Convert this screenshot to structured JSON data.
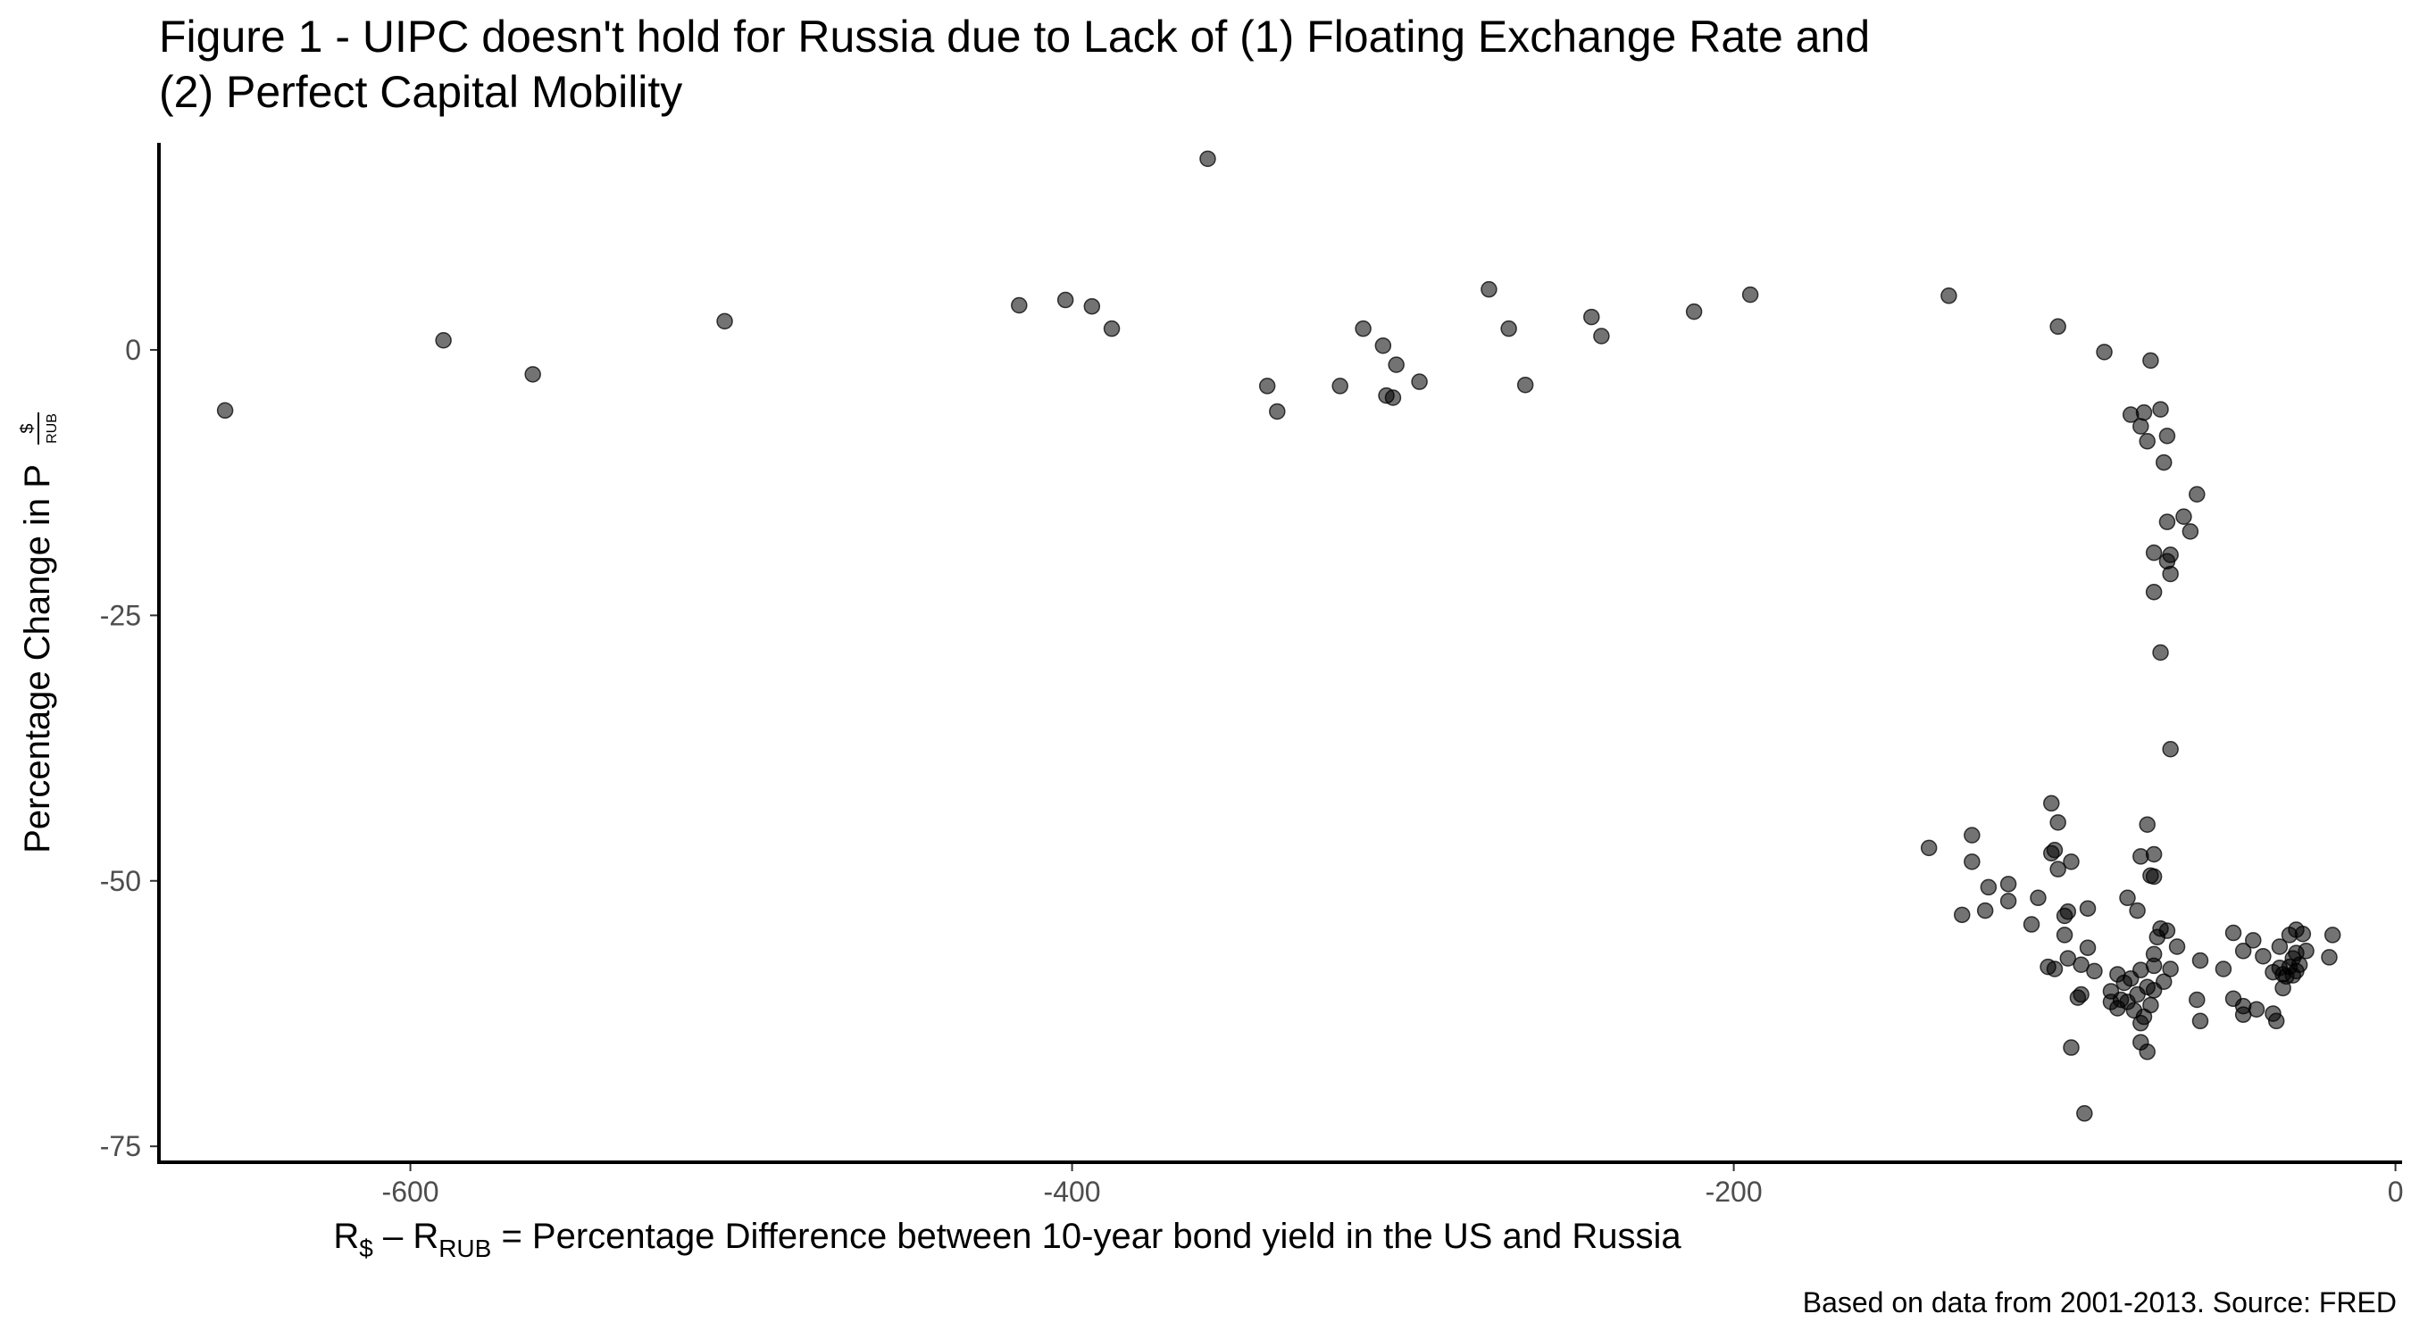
{
  "chart_data": {
    "type": "scatter",
    "title_lines": [
      "Figure 1 - UIPC doesn't hold for Russia due to Lack of (1) Floating Exchange Rate and",
      "(2) Perfect Capital Mobility"
    ],
    "xlabel": {
      "r": "R",
      "sub_usd": "$",
      "dash": " – ",
      "r2": "R",
      "sub_rub": "RUB",
      "rest": " = Percentage Difference between 10-year bond yield in the US and Russia"
    },
    "ylabel": {
      "text": "Percentage Change in P",
      "frac_num": "$",
      "frac_den": "RUB"
    },
    "caption": "Based on data from 2001-2013. Source: FRED",
    "xlim": [
      -676,
      2
    ],
    "ylim": [
      -76.5,
      19.5
    ],
    "x_ticks": [
      {
        "value": -600,
        "label": "-600"
      },
      {
        "value": -400,
        "label": "-400"
      },
      {
        "value": -200,
        "label": "-200"
      },
      {
        "value": 0,
        "label": "0"
      }
    ],
    "y_ticks": [
      {
        "value": 0,
        "label": "0"
      },
      {
        "value": -25,
        "label": "-25"
      },
      {
        "value": -50,
        "label": "-50"
      },
      {
        "value": -75,
        "label": "-75"
      }
    ],
    "grid": false,
    "point_color": "#000000",
    "points": [
      {
        "x": -656,
        "y": -5.7
      },
      {
        "x": -590,
        "y": 0.9
      },
      {
        "x": -563,
        "y": -2.3
      },
      {
        "x": -505,
        "y": 2.7
      },
      {
        "x": -416,
        "y": 4.2
      },
      {
        "x": -402,
        "y": 4.7
      },
      {
        "x": -394,
        "y": 4.1
      },
      {
        "x": -388,
        "y": 2.0
      },
      {
        "x": -359,
        "y": 18.0
      },
      {
        "x": -341,
        "y": -3.4
      },
      {
        "x": -338,
        "y": -5.8
      },
      {
        "x": -319,
        "y": -3.4
      },
      {
        "x": -312,
        "y": 2.0
      },
      {
        "x": -306,
        "y": 0.4
      },
      {
        "x": -305,
        "y": -4.3
      },
      {
        "x": -303,
        "y": -4.5
      },
      {
        "x": -302,
        "y": -1.4
      },
      {
        "x": -295,
        "y": -3.0
      },
      {
        "x": -274,
        "y": 5.7
      },
      {
        "x": -268,
        "y": 2.0
      },
      {
        "x": -263,
        "y": -3.3
      },
      {
        "x": -243,
        "y": 3.1
      },
      {
        "x": -240,
        "y": 1.3
      },
      {
        "x": -212,
        "y": 3.6
      },
      {
        "x": -195,
        "y": 5.2
      },
      {
        "x": -135,
        "y": 5.1
      },
      {
        "x": -102,
        "y": 2.2
      },
      {
        "x": -88,
        "y": -0.2
      },
      {
        "x": -74,
        "y": -1.0
      },
      {
        "x": -80,
        "y": -6.1
      },
      {
        "x": -76,
        "y": -5.9
      },
      {
        "x": -71,
        "y": -5.6
      },
      {
        "x": -77,
        "y": -7.2
      },
      {
        "x": -75,
        "y": -8.6
      },
      {
        "x": -69,
        "y": -8.1
      },
      {
        "x": -70,
        "y": -10.6
      },
      {
        "x": -60,
        "y": -13.6
      },
      {
        "x": -64,
        "y": -15.7
      },
      {
        "x": -69,
        "y": -16.2
      },
      {
        "x": -62,
        "y": -17.1
      },
      {
        "x": -73,
        "y": -19.1
      },
      {
        "x": -68,
        "y": -19.3
      },
      {
        "x": -69,
        "y": -19.9
      },
      {
        "x": -68,
        "y": -21.1
      },
      {
        "x": -73,
        "y": -22.8
      },
      {
        "x": -71,
        "y": -28.5
      },
      {
        "x": -68,
        "y": -37.6
      },
      {
        "x": -141,
        "y": -46.9
      },
      {
        "x": -128,
        "y": -45.7
      },
      {
        "x": -128,
        "y": -48.2
      },
      {
        "x": -123,
        "y": -50.6
      },
      {
        "x": -117,
        "y": -50.3
      },
      {
        "x": -131,
        "y": -53.2
      },
      {
        "x": -124,
        "y": -52.8
      },
      {
        "x": -117,
        "y": -51.9
      },
      {
        "x": -104,
        "y": -42.7
      },
      {
        "x": -102,
        "y": -44.5
      },
      {
        "x": -104,
        "y": -47.4
      },
      {
        "x": -102,
        "y": -48.9
      },
      {
        "x": -98,
        "y": -48.2
      },
      {
        "x": -103,
        "y": -47.1
      },
      {
        "x": -75,
        "y": -44.7
      },
      {
        "x": -77,
        "y": -47.7
      },
      {
        "x": -73,
        "y": -47.5
      },
      {
        "x": -74,
        "y": -49.5
      },
      {
        "x": -73,
        "y": -49.6
      },
      {
        "x": -81,
        "y": -51.6
      },
      {
        "x": -78,
        "y": -52.8
      },
      {
        "x": -108,
        "y": -51.6
      },
      {
        "x": -110,
        "y": -54.1
      },
      {
        "x": -99,
        "y": -52.9
      },
      {
        "x": -100,
        "y": -53.3
      },
      {
        "x": -93,
        "y": -52.6
      },
      {
        "x": -100,
        "y": -55.1
      },
      {
        "x": -105,
        "y": -58.1
      },
      {
        "x": -103,
        "y": -58.3
      },
      {
        "x": -99,
        "y": -57.3
      },
      {
        "x": -95,
        "y": -57.9
      },
      {
        "x": -93,
        "y": -56.3
      },
      {
        "x": -91,
        "y": -58.5
      },
      {
        "x": -86,
        "y": -60.4
      },
      {
        "x": -84,
        "y": -58.8
      },
      {
        "x": -83,
        "y": -61.2
      },
      {
        "x": -82,
        "y": -59.6
      },
      {
        "x": -80,
        "y": -59.2
      },
      {
        "x": -78,
        "y": -60.7
      },
      {
        "x": -77,
        "y": -58.4
      },
      {
        "x": -75,
        "y": -60.0
      },
      {
        "x": -74,
        "y": -61.7
      },
      {
        "x": -76,
        "y": -62.8
      },
      {
        "x": -79,
        "y": -62.2
      },
      {
        "x": -81,
        "y": -61.4
      },
      {
        "x": -84,
        "y": -62.0
      },
      {
        "x": -86,
        "y": -61.4
      },
      {
        "x": -96,
        "y": -61.0
      },
      {
        "x": -95,
        "y": -60.7
      },
      {
        "x": -98,
        "y": -65.7
      },
      {
        "x": -77,
        "y": -65.2
      },
      {
        "x": -75,
        "y": -66.1
      },
      {
        "x": -77,
        "y": -63.4
      },
      {
        "x": -94,
        "y": -71.9
      },
      {
        "x": -73,
        "y": -56.9
      },
      {
        "x": -71,
        "y": -54.5
      },
      {
        "x": -72,
        "y": -55.3
      },
      {
        "x": -69,
        "y": -54.7
      },
      {
        "x": -66,
        "y": -56.2
      },
      {
        "x": -73,
        "y": -58.0
      },
      {
        "x": -68,
        "y": -58.3
      },
      {
        "x": -70,
        "y": -59.5
      },
      {
        "x": -73,
        "y": -60.3
      },
      {
        "x": -59,
        "y": -57.5
      },
      {
        "x": -52,
        "y": -58.3
      },
      {
        "x": -49,
        "y": -54.9
      },
      {
        "x": -46,
        "y": -56.6
      },
      {
        "x": -43,
        "y": -55.6
      },
      {
        "x": -40,
        "y": -57.1
      },
      {
        "x": -37,
        "y": -58.6
      },
      {
        "x": -34,
        "y": -58.8
      },
      {
        "x": -35,
        "y": -56.2
      },
      {
        "x": -32,
        "y": -55.1
      },
      {
        "x": -30,
        "y": -54.6
      },
      {
        "x": -28,
        "y": -55.0
      },
      {
        "x": -27,
        "y": -56.6
      },
      {
        "x": -29,
        "y": -57.9
      },
      {
        "x": -30,
        "y": -58.5
      },
      {
        "x": -31,
        "y": -57.3
      },
      {
        "x": -33,
        "y": -59.0
      },
      {
        "x": -35,
        "y": -58.2
      },
      {
        "x": -19,
        "y": -55.1
      },
      {
        "x": -20,
        "y": -57.2
      },
      {
        "x": -60,
        "y": -61.2
      },
      {
        "x": -59,
        "y": -63.2
      },
      {
        "x": -49,
        "y": -61.1
      },
      {
        "x": -46,
        "y": -62.6
      },
      {
        "x": -46,
        "y": -61.8
      },
      {
        "x": -42,
        "y": -62.1
      },
      {
        "x": -37,
        "y": -62.5
      },
      {
        "x": -36,
        "y": -63.2
      },
      {
        "x": -34,
        "y": -60.1
      },
      {
        "x": -32,
        "y": -58.1
      },
      {
        "x": -31,
        "y": -58.9
      },
      {
        "x": -30,
        "y": -56.8
      }
    ]
  }
}
